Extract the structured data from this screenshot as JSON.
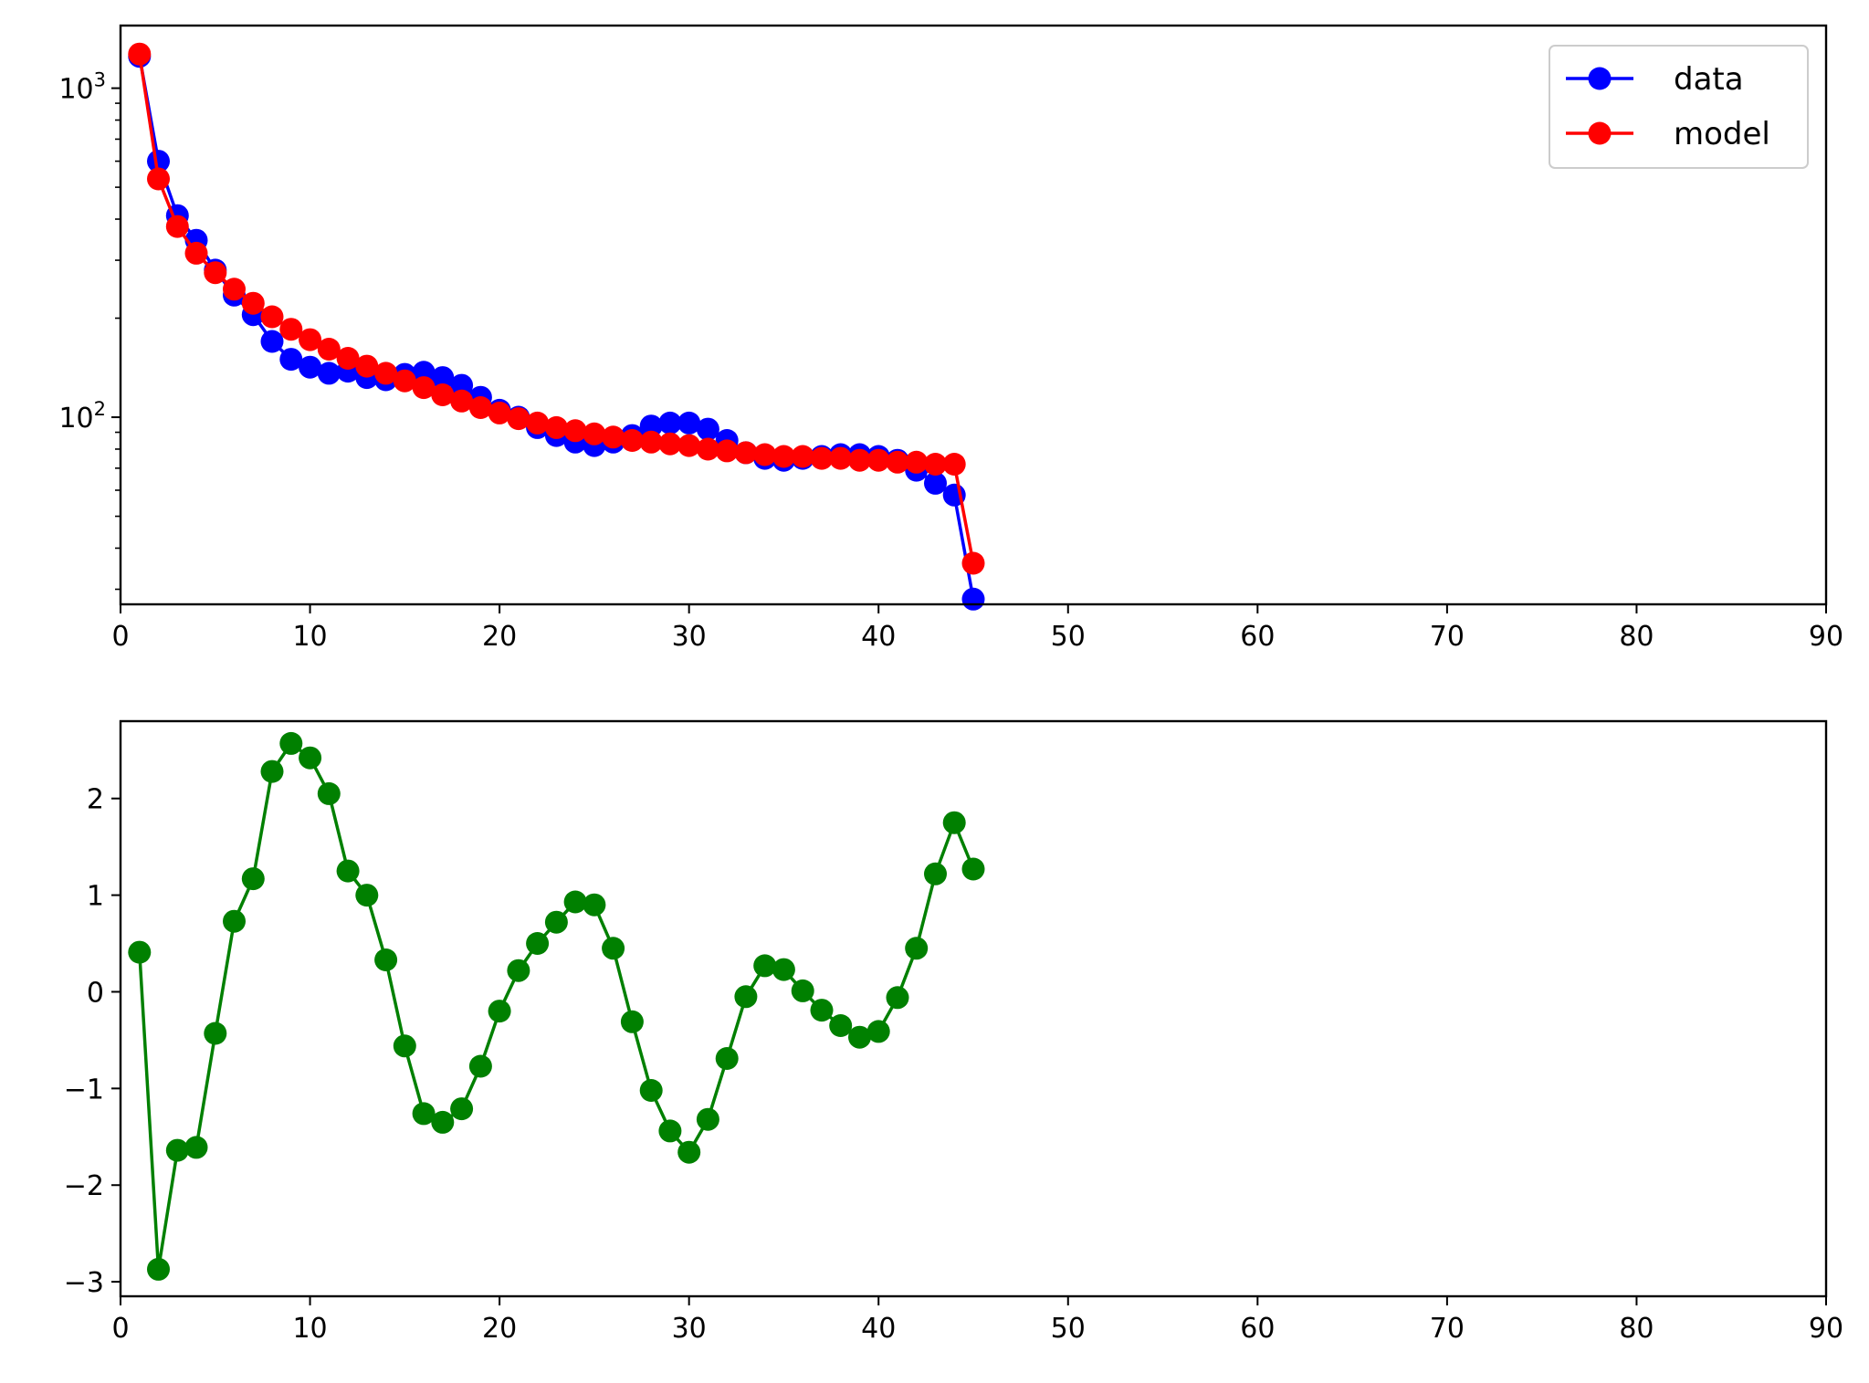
{
  "chart_data": [
    {
      "type": "line",
      "yscale": "log",
      "xlim": [
        0,
        90
      ],
      "ylim": [
        27,
        1550
      ],
      "xticks": [
        "0",
        "10",
        "20",
        "30",
        "40",
        "50",
        "60",
        "70",
        "80",
        "90"
      ],
      "xtick_values": [
        0,
        10,
        20,
        30,
        40,
        50,
        60,
        70,
        80,
        90
      ],
      "yticks": [
        {
          "value": 100,
          "base": "10",
          "exp": "2"
        },
        {
          "value": 1000,
          "base": "10",
          "exp": "3"
        }
      ],
      "grid": false,
      "legend": {
        "placement": "top-right"
      },
      "x": [
        1,
        2,
        3,
        4,
        5,
        6,
        7,
        8,
        9,
        10,
        11,
        12,
        13,
        14,
        15,
        16,
        17,
        18,
        19,
        20,
        21,
        22,
        23,
        24,
        25,
        26,
        27,
        28,
        29,
        30,
        31,
        32,
        33,
        34,
        35,
        36,
        37,
        38,
        39,
        40,
        41,
        42,
        43,
        44,
        45
      ],
      "series": [
        {
          "name": "data",
          "color": "#0000ff",
          "values": [
            1250,
            600,
            410,
            345,
            280,
            235,
            205,
            170,
            150,
            142,
            136,
            138,
            132,
            130,
            135,
            137,
            132,
            125,
            115,
            105,
            100,
            93,
            88,
            84,
            82,
            84,
            88,
            94,
            96,
            96,
            92,
            85,
            78,
            75,
            74,
            75,
            76,
            77,
            77,
            76,
            74,
            69,
            63,
            58,
            28
          ]
        },
        {
          "name": "model",
          "color": "#ff0000",
          "values": [
            1270,
            530,
            380,
            315,
            275,
            245,
            222,
            202,
            185,
            172,
            161,
            151,
            143,
            136,
            129,
            123,
            117,
            112,
            107,
            103,
            99,
            96,
            93,
            91,
            89,
            87,
            85,
            84,
            83,
            82,
            80,
            79,
            78,
            77,
            76,
            76,
            75,
            75,
            74,
            74,
            73,
            73,
            72,
            72,
            36
          ]
        }
      ]
    },
    {
      "type": "line",
      "xlim": [
        0,
        90
      ],
      "ylim": [
        -3.15,
        2.8
      ],
      "xticks": [
        "0",
        "10",
        "20",
        "30",
        "40",
        "50",
        "60",
        "70",
        "80",
        "90"
      ],
      "xtick_values": [
        0,
        10,
        20,
        30,
        40,
        50,
        60,
        70,
        80,
        90
      ],
      "yticks": [
        {
          "value": -3,
          "label": "−3"
        },
        {
          "value": -2,
          "label": "−2"
        },
        {
          "value": -1,
          "label": "−1"
        },
        {
          "value": 0,
          "label": "0"
        },
        {
          "value": 1,
          "label": "1"
        },
        {
          "value": 2,
          "label": "2"
        }
      ],
      "grid": false,
      "x": [
        1,
        2,
        3,
        4,
        5,
        6,
        7,
        8,
        9,
        10,
        11,
        12,
        13,
        14,
        15,
        16,
        17,
        18,
        19,
        20,
        21,
        22,
        23,
        24,
        25,
        26,
        27,
        28,
        29,
        30,
        31,
        32,
        33,
        34,
        35,
        36,
        37,
        38,
        39,
        40,
        41,
        42,
        43,
        44,
        45
      ],
      "series": [
        {
          "color": "#008000",
          "values": [
            0.41,
            -2.87,
            -1.64,
            -1.61,
            -0.43,
            0.73,
            1.17,
            2.28,
            2.57,
            2.42,
            2.05,
            1.25,
            1.0,
            0.33,
            -0.56,
            -1.26,
            -1.35,
            -1.21,
            -0.77,
            -0.2,
            0.22,
            0.5,
            0.72,
            0.93,
            0.9,
            0.45,
            -0.31,
            -1.02,
            -1.44,
            -1.66,
            -1.32,
            -0.69,
            -0.05,
            0.27,
            0.23,
            0.01,
            -0.19,
            -0.35,
            -0.47,
            -0.41,
            -0.06,
            0.45,
            1.22,
            1.75,
            1.27
          ]
        }
      ]
    }
  ]
}
